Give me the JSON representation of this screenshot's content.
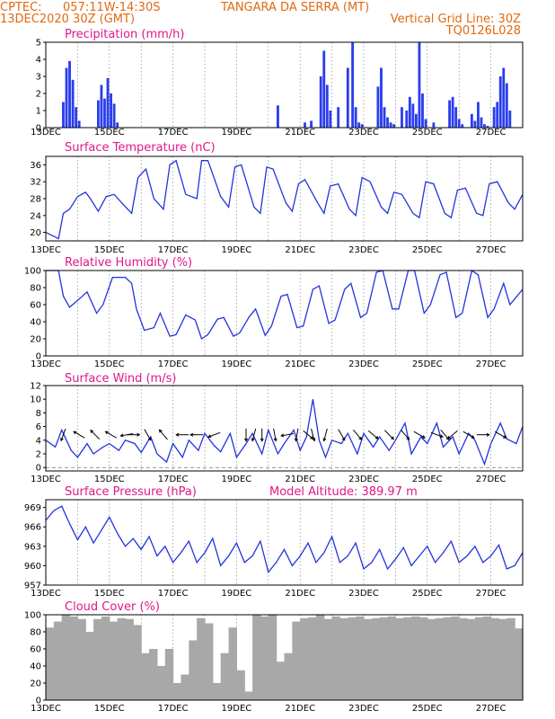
{
  "header": {
    "source": "CPTEC:",
    "coords": "057:11W-14:30S",
    "location": "TANGARA DA SERRA (MT)",
    "init": "13DEC2020 30Z (GMT)",
    "grid_note": "Vertical Grid Line: 30Z",
    "code": "TQ0126L028"
  },
  "x_ticks": [
    "13DEC",
    "15DEC",
    "17DEC",
    "19DEC",
    "21DEC",
    "23DEC",
    "25DEC",
    "27DEC"
  ],
  "colors": {
    "line": "#2233dd",
    "bar": "#2a3dee",
    "cloud": "#a8a8a8",
    "header": "#e06a10",
    "title": "#e0178a"
  },
  "chart_data": [
    {
      "type": "bar",
      "title": "Precipitation (mm/h)",
      "x_unit": "days since 13DEC",
      "ylim": [
        0,
        5
      ],
      "yticks": [
        "0",
        "1",
        "2",
        "3",
        "4",
        "5"
      ],
      "x": [
        0.55,
        0.65,
        0.75,
        0.85,
        0.95,
        1.05,
        1.65,
        1.75,
        1.85,
        1.95,
        2.05,
        2.15,
        2.25,
        7.3,
        8.15,
        8.35,
        8.65,
        8.75,
        8.85,
        8.95,
        9.2,
        9.5,
        9.65,
        9.75,
        9.85,
        9.95,
        10.45,
        10.55,
        10.65,
        10.75,
        10.85,
        10.95,
        11.2,
        11.35,
        11.45,
        11.55,
        11.65,
        11.75,
        11.85,
        11.95,
        12.2,
        12.7,
        12.8,
        12.9,
        13.0,
        13.1,
        13.4,
        13.5,
        13.6,
        13.7,
        13.8,
        13.9,
        14.1,
        14.2,
        14.3,
        14.4,
        14.5,
        14.6
      ],
      "values": [
        1.5,
        3.5,
        3.9,
        2.8,
        1.2,
        0.4,
        1.6,
        2.5,
        1.7,
        2.9,
        2.0,
        1.4,
        0.3,
        1.3,
        0.3,
        0.4,
        3.0,
        4.5,
        2.5,
        1.0,
        1.2,
        3.5,
        5.0,
        1.2,
        0.3,
        0.2,
        2.4,
        3.5,
        1.2,
        0.6,
        0.3,
        0.2,
        1.2,
        1.0,
        1.8,
        1.4,
        0.8,
        5.0,
        2.0,
        0.5,
        0.3,
        1.6,
        1.8,
        1.2,
        0.5,
        0.2,
        0.8,
        0.4,
        1.5,
        0.6,
        0.2,
        0.1,
        1.2,
        1.5,
        3.0,
        3.5,
        2.6,
        1.0
      ]
    },
    {
      "type": "line",
      "title": "Surface Temperature (nC)",
      "x_unit": "days since 13DEC",
      "ylim": [
        18,
        38
      ],
      "yticks": [
        "20",
        "24",
        "28",
        "32",
        "36"
      ],
      "x": [
        0.0,
        0.4,
        0.55,
        0.75,
        1.0,
        1.25,
        1.4,
        1.65,
        1.9,
        2.15,
        2.45,
        2.7,
        2.9,
        3.15,
        3.4,
        3.7,
        3.9,
        4.1,
        4.4,
        4.75,
        4.9,
        5.1,
        5.5,
        5.75,
        5.95,
        6.15,
        6.55,
        6.75,
        6.95,
        7.15,
        7.55,
        7.75,
        7.95,
        8.15,
        8.55,
        8.75,
        8.95,
        9.2,
        9.55,
        9.75,
        9.95,
        10.2,
        10.55,
        10.75,
        10.95,
        11.2,
        11.55,
        11.75,
        11.95,
        12.2,
        12.55,
        12.75,
        12.95,
        13.2,
        13.55,
        13.75,
        13.95,
        14.2,
        14.55,
        14.75,
        15.0
      ],
      "values": [
        20,
        18.5,
        24.5,
        25.5,
        28.5,
        29.5,
        28,
        25,
        28.5,
        29,
        26.5,
        24.5,
        33,
        35,
        28,
        25.5,
        36,
        37,
        29,
        28,
        37,
        37,
        28.5,
        26,
        35.5,
        36,
        26,
        24.5,
        35.5,
        35,
        27,
        25,
        31.5,
        32.5,
        27,
        24.5,
        31,
        31.5,
        25.5,
        24,
        33,
        32,
        26,
        24.5,
        29.5,
        29,
        24.5,
        23.5,
        32,
        31.5,
        24.5,
        23.5,
        30,
        30.5,
        24.5,
        24,
        31.5,
        32,
        27,
        25.5,
        29
      ]
    },
    {
      "type": "line",
      "title": "Relative Humidity (%)",
      "x_unit": "days since 13DEC",
      "ylim": [
        0,
        100
      ],
      "yticks": [
        "0",
        "20",
        "40",
        "60",
        "80",
        "100"
      ],
      "x": [
        0.0,
        0.4,
        0.55,
        0.75,
        1.0,
        1.3,
        1.6,
        1.8,
        2.1,
        2.5,
        2.7,
        2.85,
        3.1,
        3.4,
        3.6,
        3.9,
        4.1,
        4.4,
        4.7,
        4.9,
        5.1,
        5.4,
        5.6,
        5.9,
        6.1,
        6.4,
        6.6,
        6.9,
        7.1,
        7.4,
        7.6,
        7.9,
        8.1,
        8.4,
        8.6,
        8.9,
        9.1,
        9.4,
        9.6,
        9.9,
        10.1,
        10.4,
        10.6,
        10.9,
        11.1,
        11.4,
        11.6,
        11.9,
        12.1,
        12.4,
        12.6,
        12.9,
        13.1,
        13.4,
        13.6,
        13.9,
        14.1,
        14.4,
        14.6,
        15.0
      ],
      "values": [
        100,
        100,
        70,
        57,
        65,
        75,
        50,
        60,
        92,
        92,
        85,
        55,
        30,
        33,
        50,
        23,
        25,
        48,
        42,
        20,
        25,
        43,
        45,
        23,
        27,
        46,
        55,
        24,
        35,
        70,
        72,
        33,
        35,
        78,
        82,
        38,
        42,
        78,
        85,
        45,
        50,
        98,
        100,
        55,
        55,
        100,
        100,
        50,
        60,
        95,
        98,
        45,
        50,
        100,
        95,
        45,
        55,
        85,
        60,
        78
      ]
    },
    {
      "type": "line",
      "title": "Surface Wind (m/s)",
      "x_unit": "days since 13DEC",
      "ylim": [
        -0.5,
        12
      ],
      "yticks": [
        "0",
        "2",
        "4",
        "6",
        "8",
        "10",
        "12"
      ],
      "x": [
        0.0,
        0.3,
        0.5,
        0.8,
        1.0,
        1.3,
        1.5,
        1.8,
        2.0,
        2.3,
        2.5,
        2.8,
        3.0,
        3.3,
        3.5,
        3.8,
        4.0,
        4.3,
        4.5,
        4.8,
        5.0,
        5.3,
        5.5,
        5.8,
        6.0,
        6.3,
        6.5,
        6.8,
        7.0,
        7.3,
        7.5,
        7.8,
        8.0,
        8.2,
        8.4,
        8.6,
        8.8,
        9.0,
        9.3,
        9.5,
        9.8,
        10.0,
        10.3,
        10.5,
        10.8,
        11.0,
        11.3,
        11.5,
        11.8,
        12.0,
        12.3,
        12.5,
        12.8,
        13.0,
        13.3,
        13.5,
        13.8,
        14.0,
        14.3,
        14.5,
        14.8,
        15.0
      ],
      "values": [
        4,
        3,
        5.5,
        2.5,
        1.5,
        3.5,
        2,
        3,
        3.5,
        2.5,
        4,
        3.5,
        2.2,
        4.5,
        2,
        0.8,
        3.5,
        1.5,
        4,
        2.5,
        5,
        3.2,
        2.3,
        5,
        1.5,
        3.5,
        5,
        2,
        5.5,
        2,
        3.5,
        5.5,
        2.5,
        4.5,
        10,
        4,
        1.5,
        4,
        3.5,
        5,
        2,
        5,
        3,
        4.5,
        2.5,
        4,
        6.5,
        2,
        4.5,
        3.5,
        6.5,
        3,
        4.5,
        2,
        5,
        4,
        0.5,
        3.5,
        6.5,
        4.2,
        3.5,
        6
      ]
    },
    {
      "type": "line",
      "title": "Surface Pressure (hPa)",
      "annotation": "Model Altitude: 389.97 m",
      "x_unit": "days since 13DEC",
      "ylim": [
        957,
        970.2
      ],
      "yticks": [
        "957",
        "960",
        "963",
        "966",
        "969"
      ],
      "x": [
        0.0,
        0.25,
        0.5,
        0.75,
        1.0,
        1.25,
        1.5,
        1.75,
        2.0,
        2.25,
        2.5,
        2.75,
        3.0,
        3.25,
        3.5,
        3.75,
        4.0,
        4.25,
        4.5,
        4.75,
        5.0,
        5.25,
        5.5,
        5.75,
        6.0,
        6.25,
        6.5,
        6.75,
        7.0,
        7.25,
        7.5,
        7.75,
        8.0,
        8.25,
        8.5,
        8.75,
        9.0,
        9.25,
        9.5,
        9.75,
        10.0,
        10.25,
        10.5,
        10.75,
        11.0,
        11.25,
        11.5,
        11.75,
        12.0,
        12.25,
        12.5,
        12.75,
        13.0,
        13.25,
        13.5,
        13.75,
        14.0,
        14.25,
        14.5,
        14.75,
        15.0
      ],
      "values": [
        967,
        968.5,
        969.2,
        966.5,
        964,
        966,
        963.5,
        965.5,
        967.5,
        965,
        963,
        964.2,
        962.5,
        964.5,
        961.5,
        963,
        960.5,
        962,
        963.8,
        960.5,
        962,
        964.2,
        960,
        961.5,
        963.5,
        960.5,
        961.5,
        963.8,
        959,
        960.5,
        962.5,
        960,
        961.5,
        963.5,
        960.5,
        962,
        964.5,
        960.5,
        961.5,
        963.5,
        959.5,
        960.5,
        962.5,
        959.5,
        961,
        962.8,
        960,
        961.5,
        963,
        960.5,
        962,
        963.8,
        960.5,
        961.5,
        963,
        960.5,
        961.5,
        963.2,
        959.5,
        960,
        962
      ]
    },
    {
      "type": "bar",
      "title": "Cloud Cover (%)",
      "x_unit": "days since 13DEC",
      "ylim": [
        0,
        100
      ],
      "yticks": [
        "0",
        "20",
        "40",
        "60",
        "80",
        "100"
      ],
      "x": [
        0.0,
        0.25,
        0.5,
        0.75,
        1.0,
        1.25,
        1.5,
        1.75,
        2.0,
        2.25,
        2.5,
        2.75,
        3.0,
        3.25,
        3.5,
        3.75,
        4.0,
        4.25,
        4.5,
        4.75,
        5.0,
        5.25,
        5.5,
        5.75,
        6.0,
        6.25,
        6.5,
        6.75,
        7.0,
        7.25,
        7.5,
        7.75,
        8.0,
        8.25,
        8.5,
        8.75,
        9.0,
        9.25,
        9.5,
        9.75,
        10.0,
        10.25,
        10.5,
        10.75,
        11.0,
        11.25,
        11.5,
        11.75,
        12.0,
        12.25,
        12.5,
        12.75,
        13.0,
        13.25,
        13.5,
        13.75,
        14.0,
        14.25,
        14.5,
        14.75
      ],
      "values": [
        85,
        92,
        100,
        98,
        95,
        80,
        95,
        98,
        92,
        96,
        95,
        88,
        55,
        60,
        40,
        60,
        20,
        30,
        70,
        96,
        90,
        20,
        55,
        85,
        35,
        10,
        100,
        98,
        100,
        45,
        55,
        92,
        96,
        97,
        100,
        95,
        98,
        96,
        97,
        98,
        95,
        96,
        97,
        98,
        96,
        97,
        98,
        97,
        95,
        96,
        97,
        98,
        96,
        95,
        97,
        98,
        96,
        95,
        96,
        84
      ]
    },
    {
      "type": "scatter",
      "title": "Surface Wind direction",
      "x_unit": "days since 13DEC",
      "note": "arrow direction in degrees toward which wind blows (0=north, 90=east)",
      "x": [
        0.55,
        1.05,
        1.55,
        2.05,
        2.55,
        2.75,
        3.2,
        3.7,
        4.3,
        4.75,
        5.3,
        6.3,
        6.55,
        6.8,
        7.2,
        7.6,
        7.9,
        8.25,
        8.4,
        8.8,
        9.3,
        9.8,
        10.3,
        10.8,
        11.3,
        11.75,
        12.3,
        12.55,
        12.8,
        13.3,
        13.75,
        14.3
      ],
      "values": [
        200,
        300,
        315,
        300,
        260,
        90,
        150,
        320,
        270,
        270,
        250,
        180,
        195,
        180,
        170,
        260,
        190,
        130,
        165,
        195,
        150,
        140,
        130,
        135,
        140,
        120,
        110,
        140,
        230,
        120,
        90,
        120
      ]
    }
  ]
}
